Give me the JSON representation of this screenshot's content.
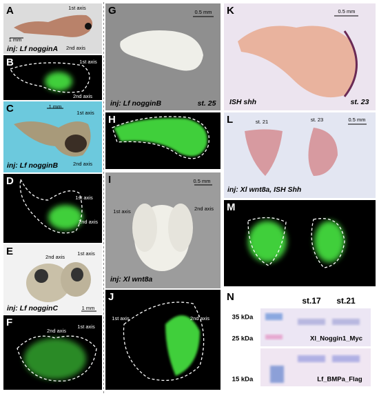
{
  "panels": [
    {
      "letter": "A",
      "labels": [
        "1st axis",
        "2nd axis",
        "1 mm",
        "inj: Lf nogginA"
      ]
    },
    {
      "letter": "B",
      "labels": [
        "1st axis",
        "2nd axis"
      ]
    },
    {
      "letter": "C",
      "labels": [
        "1 mm",
        "1st axis",
        "2nd axis",
        "inj: Lf nogginB"
      ]
    },
    {
      "letter": "D",
      "labels": [
        "1st axis",
        "2nd axis"
      ]
    },
    {
      "letter": "E",
      "labels": [
        "2nd axis",
        "1st axis",
        "1 mm",
        "inj: Lf nogginC"
      ]
    },
    {
      "letter": "F",
      "labels": [
        "2nd axis",
        "1st axis"
      ]
    },
    {
      "letter": "G",
      "labels": [
        "0.5 mm",
        "inj: Lf nogginB",
        "st. 25"
      ]
    },
    {
      "letter": "H",
      "labels": []
    },
    {
      "letter": "I",
      "labels": [
        "0.5 mm",
        "1st axis",
        "2nd axis",
        "inj: Xl wnt8a"
      ]
    },
    {
      "letter": "J",
      "labels": [
        "1st axis",
        "2nd axis"
      ]
    },
    {
      "letter": "K",
      "labels": [
        "0.5 mm",
        "ISH shh",
        "st. 23"
      ]
    },
    {
      "letter": "L",
      "labels": [
        "st. 21",
        "st. 23",
        "0.5 mm",
        "inj: Xl wnt8a, ISH Shh"
      ]
    },
    {
      "letter": "M",
      "labels": []
    },
    {
      "letter": "N",
      "labels": [
        "st.17",
        "st.21",
        "35 kDa",
        "25 kDa",
        "Xl_Noggin1_Myc",
        "15 kDa",
        "Lf_BMPa_Flag"
      ]
    }
  ]
}
